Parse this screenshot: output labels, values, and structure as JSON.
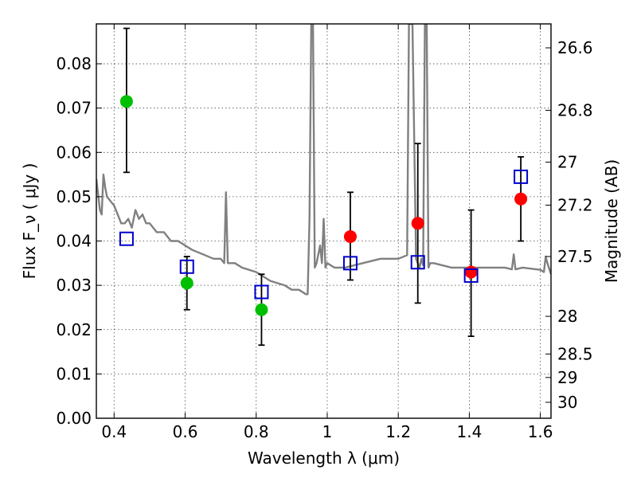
{
  "chart_data": {
    "type": "scatter",
    "xlabel": "Wavelength  λ (μm)",
    "ylabel": "Flux  F_ν  ( μJy )",
    "ylabel_right": "Magnitude (AB)",
    "xlim": [
      0.35,
      1.63
    ],
    "ylim": [
      0.0,
      0.089
    ],
    "grid": true,
    "x_ticks": [
      0.4,
      0.6,
      0.8,
      1.0,
      1.2,
      1.4,
      1.6
    ],
    "x_tick_labels": [
      "0.4",
      "0.6",
      "0.8",
      "1",
      "1.2",
      "1.4",
      "1.6"
    ],
    "y_ticks": [
      0.0,
      0.01,
      0.02,
      0.03,
      0.04,
      0.05,
      0.06,
      0.07,
      0.08
    ],
    "y_tick_labels": [
      "0.00",
      "0.01",
      "0.02",
      "0.03",
      "0.04",
      "0.05",
      "0.06",
      "0.07",
      "0.08"
    ],
    "right_ticks": [
      {
        "label": "26.6",
        "flux": 0.0836
      },
      {
        "label": "26.8",
        "flux": 0.0695
      },
      {
        "label": "27",
        "flux": 0.0578
      },
      {
        "label": "27.2",
        "flux": 0.0481
      },
      {
        "label": "27.5",
        "flux": 0.0365
      },
      {
        "label": "28",
        "flux": 0.023
      },
      {
        "label": "28.5",
        "flux": 0.0145
      },
      {
        "label": "29",
        "flux": 0.0092
      },
      {
        "label": "30",
        "flux": 0.0036
      }
    ],
    "series": [
      {
        "marker": "circle",
        "color": "#00bf00",
        "x": [
          0.435,
          0.605,
          0.815
        ],
        "y": [
          0.0715,
          0.0305,
          0.0245
        ],
        "yerr_low": [
          0.0555,
          0.0245,
          0.0165
        ],
        "yerr_high": [
          0.088,
          0.0365,
          0.0325
        ]
      },
      {
        "marker": "circle",
        "color": "#ff0000",
        "x": [
          1.065,
          1.255,
          1.405,
          1.545
        ],
        "y": [
          0.041,
          0.044,
          0.033,
          0.0495
        ],
        "yerr_low": [
          0.0312,
          0.026,
          0.0185,
          0.04
        ],
        "yerr_high": [
          0.051,
          0.062,
          0.047,
          0.059
        ]
      },
      {
        "marker": "square-open",
        "color": "#0000cc",
        "x": [
          0.435,
          0.605,
          0.815,
          1.065,
          1.255,
          1.405,
          1.545
        ],
        "y": [
          0.0405,
          0.0342,
          0.0285,
          0.035,
          0.0352,
          0.0322,
          0.0545
        ]
      },
      {
        "marker": "line",
        "color": "#808080",
        "x": [
          0.35,
          0.36,
          0.365,
          0.37,
          0.375,
          0.38,
          0.39,
          0.4,
          0.41,
          0.42,
          0.43,
          0.44,
          0.45,
          0.46,
          0.47,
          0.48,
          0.49,
          0.5,
          0.52,
          0.54,
          0.56,
          0.58,
          0.6,
          0.62,
          0.65,
          0.68,
          0.7,
          0.71,
          0.715,
          0.72,
          0.74,
          0.76,
          0.8,
          0.84,
          0.88,
          0.9,
          0.92,
          0.94,
          0.945,
          0.95,
          0.955,
          0.96,
          0.965,
          0.97,
          0.975,
          0.98,
          0.985,
          0.99,
          0.995,
          1.0,
          1.02,
          1.05,
          1.1,
          1.15,
          1.2,
          1.225,
          1.23,
          1.24,
          1.25,
          1.26,
          1.265,
          1.27,
          1.275,
          1.28,
          1.285,
          1.29,
          1.3,
          1.35,
          1.4,
          1.45,
          1.5,
          1.52,
          1.525,
          1.53,
          1.55,
          1.6,
          1.61,
          1.615,
          1.62,
          1.63
        ],
        "y": [
          0.054,
          0.047,
          0.046,
          0.055,
          0.052,
          0.05,
          0.049,
          0.048,
          0.046,
          0.044,
          0.044,
          0.045,
          0.043,
          0.047,
          0.045,
          0.046,
          0.044,
          0.044,
          0.042,
          0.042,
          0.04,
          0.04,
          0.039,
          0.038,
          0.037,
          0.036,
          0.036,
          0.035,
          0.051,
          0.035,
          0.035,
          0.034,
          0.033,
          0.031,
          0.03,
          0.029,
          0.029,
          0.028,
          0.028,
          0.045,
          0.089,
          0.089,
          0.034,
          0.035,
          0.037,
          0.039,
          0.035,
          0.045,
          0.034,
          0.035,
          0.034,
          0.034,
          0.035,
          0.036,
          0.036,
          0.0368,
          0.089,
          0.089,
          0.036,
          0.034,
          0.036,
          0.0345,
          0.089,
          0.089,
          0.034,
          0.035,
          0.035,
          0.034,
          0.034,
          0.034,
          0.034,
          0.0336,
          0.037,
          0.0336,
          0.034,
          0.0335,
          0.033,
          0.0365,
          0.035,
          0.0325
        ]
      }
    ]
  }
}
